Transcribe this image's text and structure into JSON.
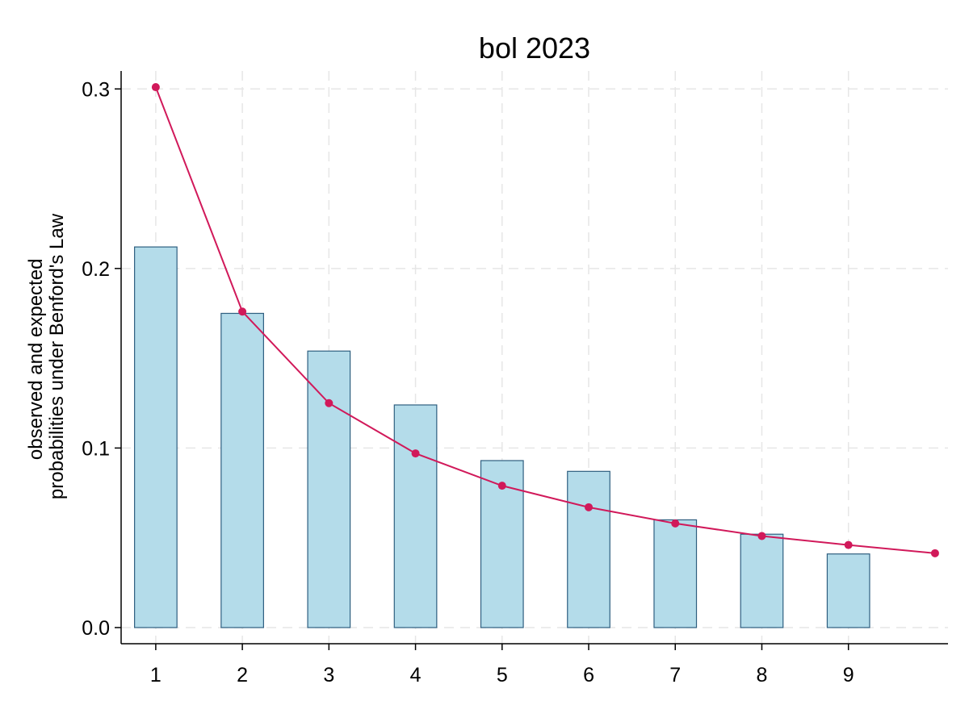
{
  "chart_data": {
    "type": "bar",
    "title": "bol 2023",
    "ylabel_lines": [
      "observed and expected",
      "probabilities under Benford's Law"
    ],
    "xlabel": "",
    "x_ticks": [
      1,
      2,
      3,
      4,
      5,
      6,
      7,
      8,
      9
    ],
    "y_ticks": [
      "0.0",
      "0.1",
      "0.2",
      "0.3"
    ],
    "ylim": [
      -0.009,
      0.31
    ],
    "xlim": [
      0.6,
      10.15
    ],
    "grid": true,
    "legend": "none",
    "series": [
      {
        "type": "bar",
        "x": [
          1,
          2,
          3,
          4,
          5,
          6,
          7,
          8,
          9
        ],
        "values": [
          0.212,
          0.175,
          0.154,
          0.124,
          0.093,
          0.087,
          0.06,
          0.052,
          0.041
        ],
        "color": "#b4dcea",
        "edge_color": "#2f5f80"
      },
      {
        "type": "line",
        "x": [
          1,
          2,
          3,
          4,
          5,
          6,
          7,
          8,
          9,
          10
        ],
        "values": [
          0.301,
          0.176,
          0.125,
          0.097,
          0.079,
          0.067,
          0.058,
          0.051,
          0.046,
          0.0414
        ],
        "color": "#d1195a"
      }
    ]
  }
}
